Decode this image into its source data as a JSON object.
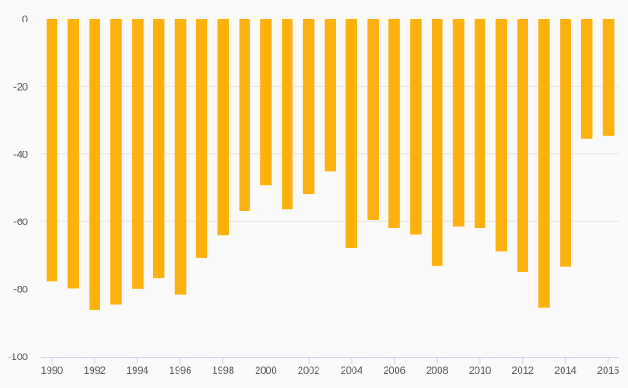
{
  "chart_data": {
    "type": "bar",
    "title": "",
    "xlabel": "",
    "ylabel": "",
    "categories": [
      "1990",
      "1991",
      "1992",
      "1993",
      "1994",
      "1995",
      "1996",
      "1997",
      "1998",
      "1999",
      "2000",
      "2001",
      "2002",
      "2003",
      "2004",
      "2005",
      "2006",
      "2007",
      "2008",
      "2009",
      "2010",
      "2011",
      "2012",
      "2013",
      "2014",
      "2015",
      "2016"
    ],
    "values": [
      -77.8,
      -79.7,
      -86.2,
      -84.5,
      -79.8,
      -76.7,
      -81.6,
      -70.8,
      -64.0,
      -56.8,
      -49.4,
      -56.3,
      -51.8,
      -45.2,
      -67.9,
      -59.6,
      -61.9,
      -63.8,
      -73.2,
      -61.4,
      -61.8,
      -68.8,
      -74.9,
      -85.6,
      -73.4,
      -35.5,
      -34.7
    ],
    "ylim": [
      -100,
      0
    ],
    "yticks": [
      "0",
      "-20",
      "-40",
      "-60",
      "-80",
      "-100"
    ],
    "xtick_labels": [
      "1990",
      "1992",
      "1994",
      "1996",
      "1998",
      "2000",
      "2002",
      "2004",
      "2006",
      "2008",
      "2010",
      "2012",
      "2014",
      "2016"
    ],
    "grid": true,
    "colors": {
      "bar": "#FDB10C",
      "grid": "#e6e6e6",
      "axis": "#cfd8ec",
      "text": "#555555",
      "background": "#fafafa"
    }
  }
}
